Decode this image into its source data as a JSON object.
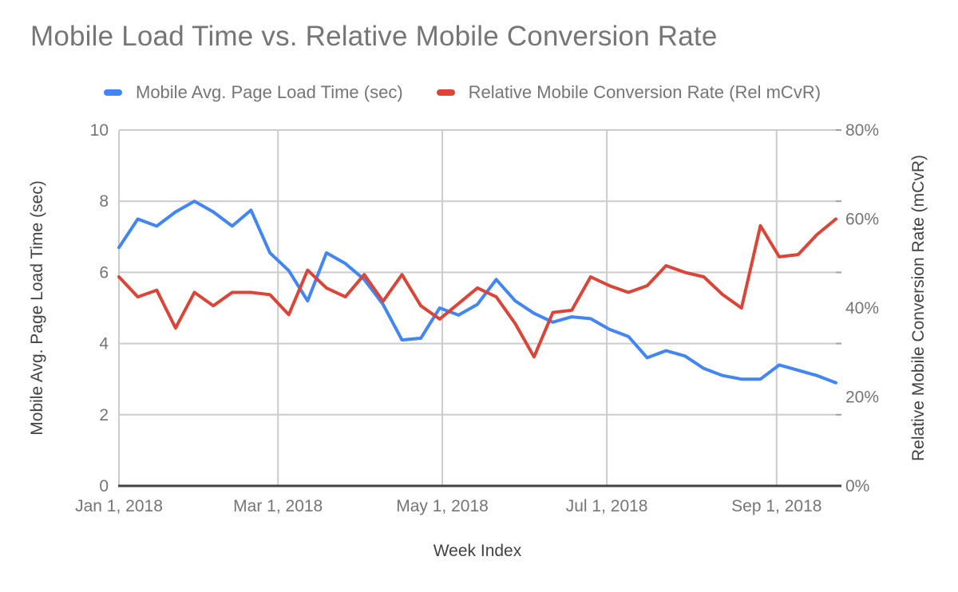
{
  "title": "Mobile Load Time vs. Relative Mobile Conversion Rate",
  "legend": [
    {
      "label": "Mobile Avg. Page Load Time (sec)",
      "color": "#4285f4"
    },
    {
      "label": "Relative Mobile Conversion Rate (Rel mCvR)",
      "color": "#db4437"
    }
  ],
  "axes": {
    "x_title": "Week Index",
    "y_left_title": "Mobile Avg. Page Load Time (sec)",
    "y_right_title": "Relative Mobile Conversion Rate (mCvR)",
    "y_left_tick_labels": [
      "0",
      "2",
      "4",
      "6",
      "8",
      "10"
    ],
    "y_right_tick_labels": [
      "0%",
      "20%",
      "40%",
      "60%",
      "80%"
    ],
    "x_tick_labels": [
      "Jan 1, 2018",
      "Mar 1, 2018",
      "May 1, 2018",
      "Jul 1, 2018",
      "Sep 1, 2018"
    ]
  },
  "chart_data": {
    "type": "line",
    "title": "Mobile Load Time vs. Relative Mobile Conversion Rate",
    "xlabel": "Week Index",
    "ylabel_left": "Mobile Avg. Page Load Time (sec)",
    "ylabel_right": "Relative Mobile Conversion Rate (mCvR)",
    "grid": true,
    "legend_position": "top",
    "x": [
      0,
      1,
      2,
      3,
      4,
      5,
      6,
      7,
      8,
      9,
      10,
      11,
      12,
      13,
      14,
      15,
      16,
      17,
      18,
      19,
      20,
      21,
      22,
      23,
      24,
      25,
      26,
      27,
      28,
      29,
      30,
      31,
      32,
      33,
      34,
      35,
      36,
      37,
      38
    ],
    "x_unit": "week index (weekly points, Jan 1 2018 through Sep 24 2018)",
    "x_ticks": [
      {
        "label": "Jan 1, 2018",
        "week": 0
      },
      {
        "label": "Mar 1, 2018",
        "week": 8.43
      },
      {
        "label": "May 1, 2018",
        "week": 17.14
      },
      {
        "label": "Jul 1, 2018",
        "week": 25.86
      },
      {
        "label": "Sep 1, 2018",
        "week": 34.86
      }
    ],
    "y_left_range": [
      0,
      10
    ],
    "y_left_tick_values": [
      0,
      2,
      4,
      6,
      8,
      10
    ],
    "y_right_range_pct": [
      0,
      80
    ],
    "y_right_tick_values": [
      0,
      20,
      40,
      60,
      80
    ],
    "series": [
      {
        "name": "Mobile Avg. Page Load Time (sec)",
        "axis": "left",
        "color": "#4285f4",
        "values": [
          6.7,
          7.5,
          7.3,
          7.7,
          8.0,
          7.7,
          7.3,
          7.75,
          6.55,
          6.05,
          5.2,
          6.55,
          6.25,
          5.8,
          5.1,
          4.1,
          4.15,
          5.0,
          4.8,
          5.1,
          5.8,
          5.2,
          4.85,
          4.6,
          4.75,
          4.7,
          4.4,
          4.2,
          3.6,
          3.8,
          3.65,
          3.3,
          3.1,
          3.0,
          3.0,
          3.4,
          3.25,
          3.1,
          2.9
        ]
      },
      {
        "name": "Relative Mobile Conversion Rate (Rel mCvR)",
        "axis": "right",
        "color": "#db4437",
        "values_pct": [
          47,
          42.5,
          44,
          35.5,
          43.5,
          40.5,
          43.5,
          43.5,
          43,
          38.5,
          48.5,
          44.5,
          42.5,
          47.5,
          41.5,
          47.5,
          40.5,
          37.5,
          41,
          44.5,
          42.5,
          36.5,
          29,
          39,
          39.5,
          47,
          45,
          43.5,
          45,
          49.5,
          48,
          47,
          43,
          40,
          58.5,
          51.5,
          52,
          56.5,
          60
        ]
      }
    ]
  }
}
